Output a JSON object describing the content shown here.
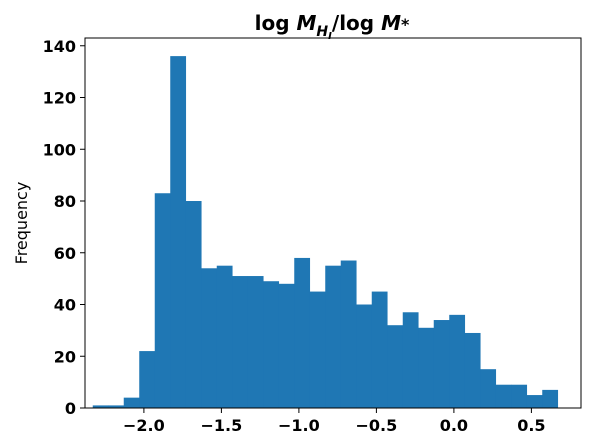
{
  "chart_data": {
    "type": "bar",
    "title_parts": {
      "log1": "log",
      "m": "M",
      "sub": "H",
      "subsub": "I",
      "slash": "/",
      "log2": "log",
      "m2": "M",
      "star": "*"
    },
    "xlabel": "",
    "ylabel": "Frequency",
    "bar_color": "#1f77b4",
    "grid": false,
    "xlim": [
      -2.38,
      0.82
    ],
    "ylim": [
      0,
      143
    ],
    "x_ticks": [
      -2.0,
      -1.5,
      -1.0,
      -0.5,
      0.0,
      0.5
    ],
    "x_tick_labels": [
      "−2.0",
      "−1.5",
      "−1.0",
      "−0.5",
      "0.0",
      "0.5"
    ],
    "y_ticks": [
      0,
      20,
      40,
      60,
      80,
      100,
      120,
      140
    ],
    "y_tick_labels": [
      "0",
      "20",
      "40",
      "60",
      "80",
      "100",
      "120",
      "140"
    ],
    "bin_start": -2.33,
    "bin_width": 0.1,
    "values": [
      1,
      1,
      4,
      22,
      83,
      136,
      80,
      54,
      55,
      51,
      51,
      49,
      48,
      58,
      45,
      55,
      57,
      40,
      45,
      32,
      37,
      31,
      34,
      36,
      29,
      15,
      9,
      9,
      5,
      7
    ]
  }
}
